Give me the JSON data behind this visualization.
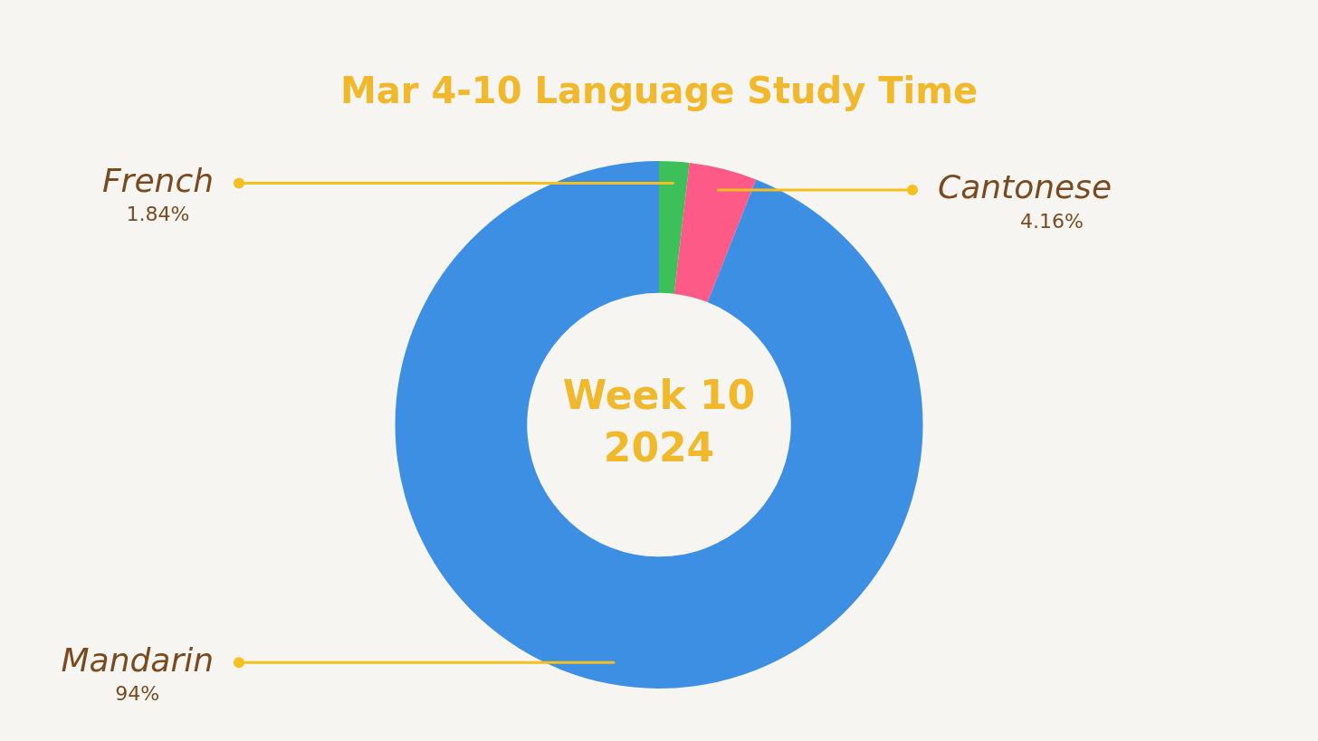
{
  "chart_data": {
    "type": "donut",
    "title": "Mar 4-10 Language Study Time",
    "categories": [
      "French",
      "Cantonese",
      "Mandarin"
    ],
    "values": [
      1.84,
      4.16,
      94
    ],
    "value_labels": [
      "1.84%",
      "4.16%",
      "94%"
    ],
    "colors": [
      "#3dbf5a",
      "#fd5a88",
      "#3d8fe3"
    ],
    "annotations": [
      "Week 10",
      "2024"
    ],
    "legend": false
  }
}
